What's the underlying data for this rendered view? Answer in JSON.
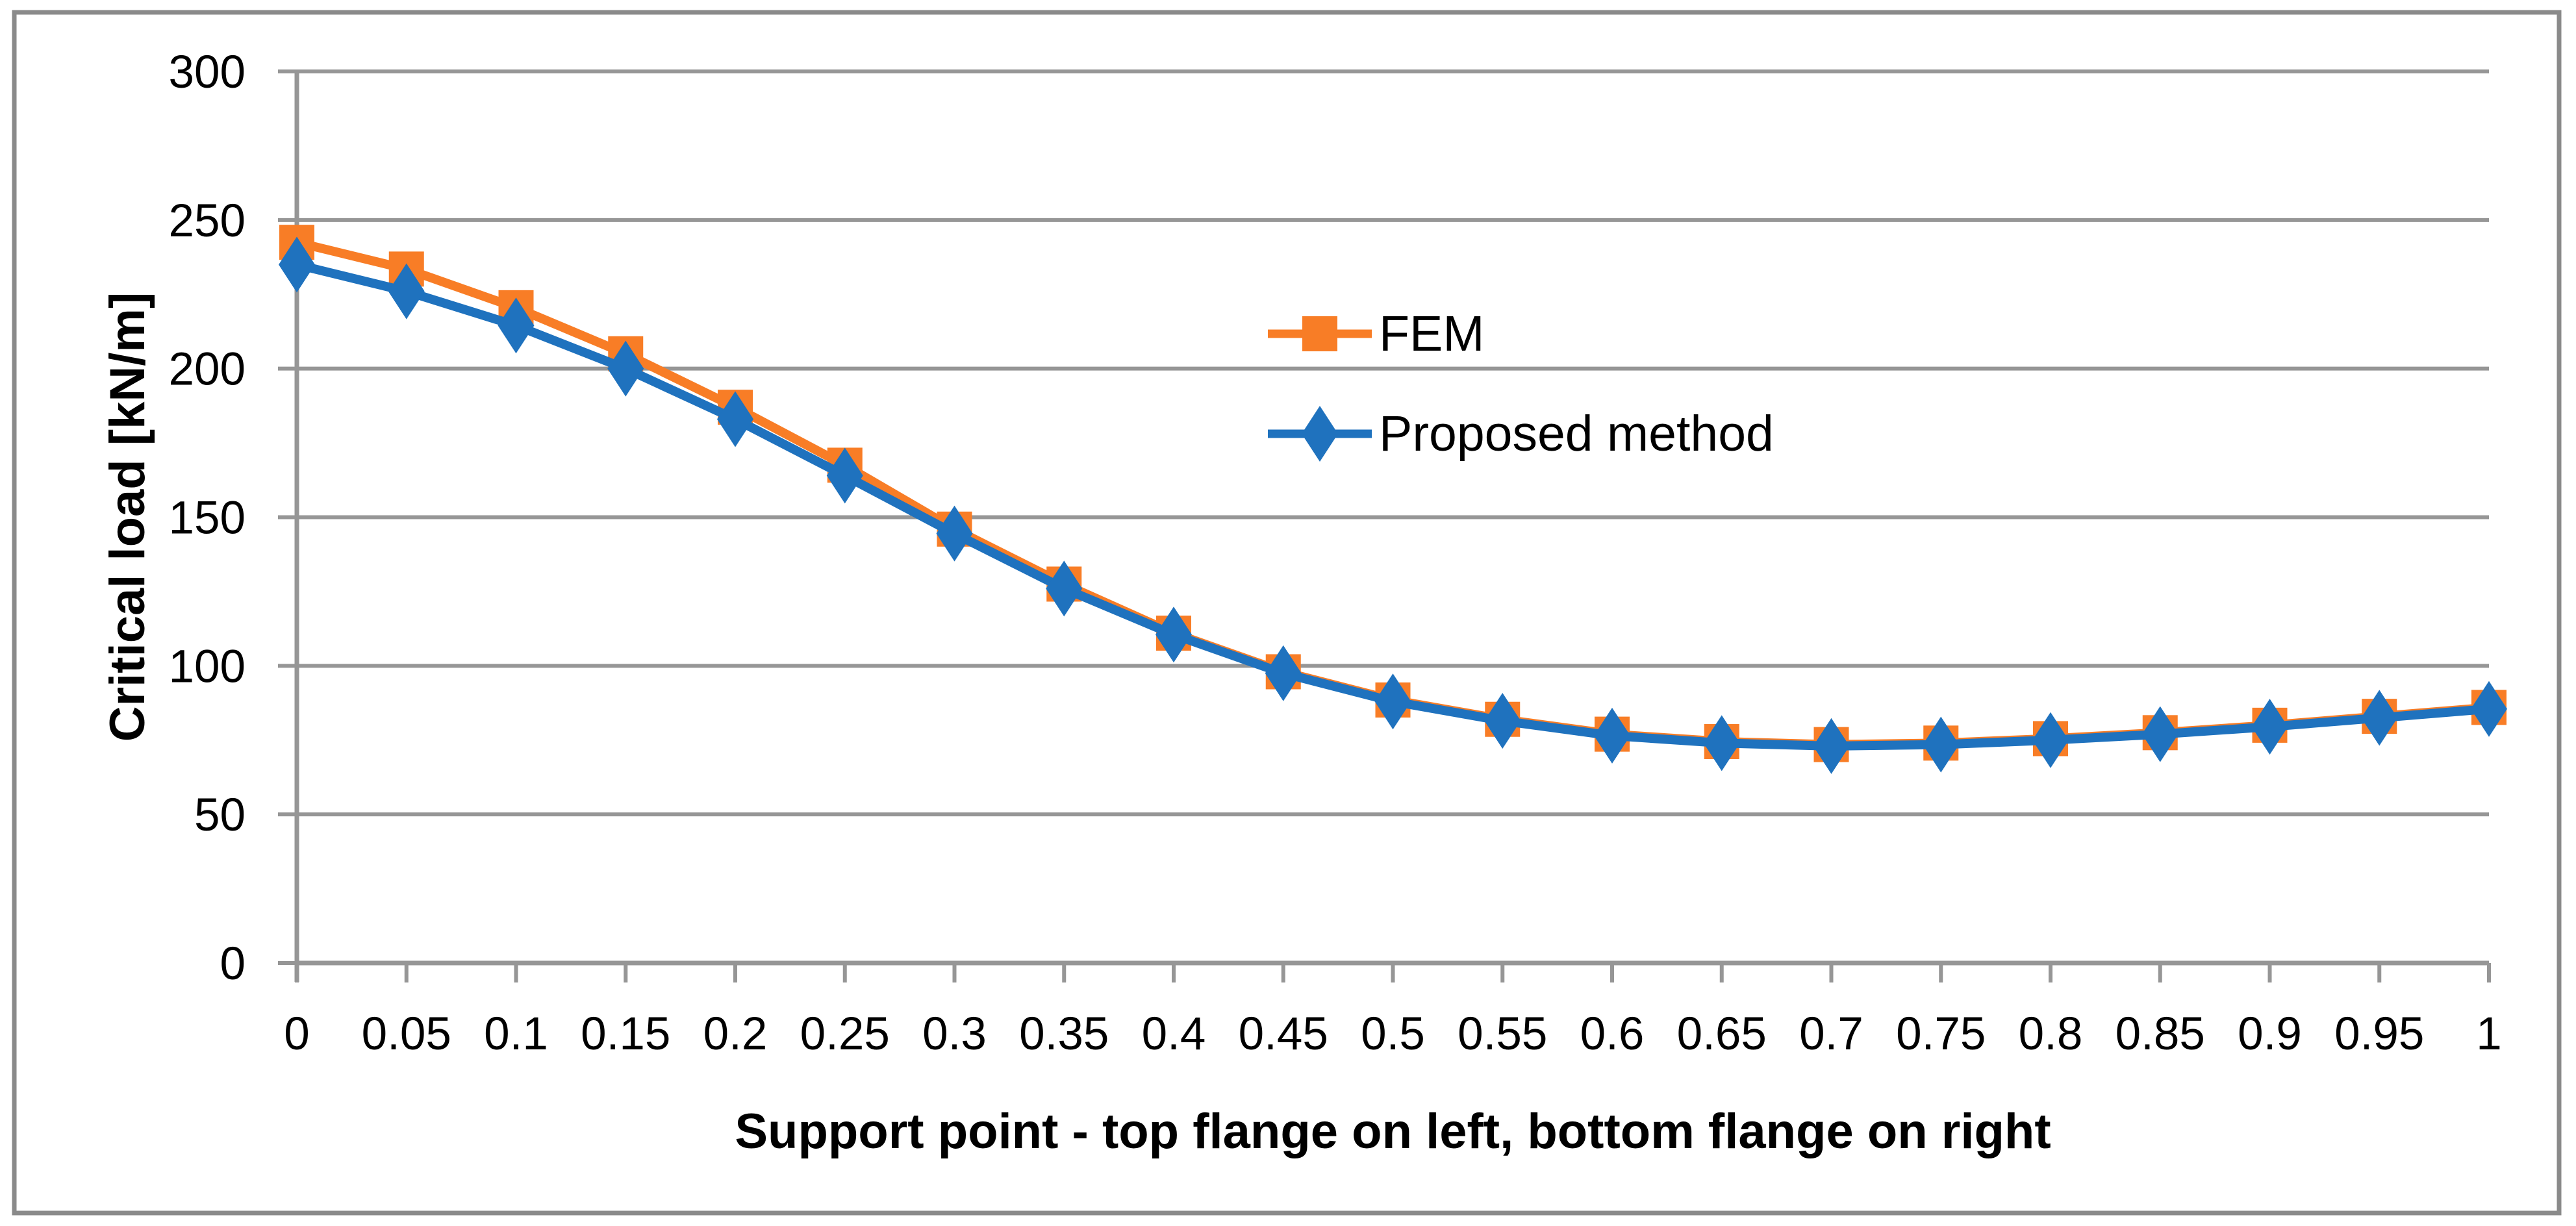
{
  "figure": {
    "background": "#FFFFFF",
    "border_color": "#8A8A8A",
    "description": "Line chart comparing FEM and Proposed method critical loads versus support point position"
  },
  "chart_data": {
    "type": "line",
    "title": "",
    "xlabel": "Support point - top flange on left, bottom flange on right",
    "ylabel": "Critical load [kN/m]",
    "xlim": [
      0,
      1
    ],
    "ylim": [
      0,
      300
    ],
    "grid": "horizontal-major",
    "legend_position": "inside-top-center",
    "x": [
      0,
      0.05,
      0.1,
      0.15,
      0.2,
      0.25,
      0.3,
      0.35,
      0.4,
      0.45,
      0.5,
      0.55,
      0.6,
      0.65,
      0.7,
      0.75,
      0.8,
      0.85,
      0.9,
      0.95,
      1
    ],
    "x_tick_labels": [
      "0",
      "0.05",
      "0.1",
      "0.15",
      "0.2",
      "0.25",
      "0.3",
      "0.35",
      "0.4",
      "0.45",
      "0.5",
      "0.55",
      "0.6",
      "0.65",
      "0.7",
      "0.75",
      "0.8",
      "0.85",
      "0.9",
      "0.95",
      "1"
    ],
    "y_ticks": [
      0,
      50,
      100,
      150,
      200,
      250,
      300
    ],
    "y_tick_labels": [
      "0",
      "50",
      "100",
      "150",
      "200",
      "250",
      "300"
    ],
    "series": [
      {
        "name": "FEM",
        "marker": "square",
        "color": "#F87D26",
        "values": [
          242.5,
          233.5,
          220.5,
          205,
          187,
          167.5,
          146,
          127.5,
          111,
          98,
          88.5,
          82,
          77,
          74.5,
          73.5,
          74,
          75.5,
          77.5,
          80,
          83,
          86
        ]
      },
      {
        "name": "Proposed method",
        "marker": "diamond",
        "color": "#1F72BE",
        "values": [
          235,
          226,
          214.5,
          200,
          183,
          164,
          144.5,
          126,
          110.5,
          97.5,
          88,
          81.5,
          76.5,
          74,
          73,
          73.5,
          75,
          77,
          79.5,
          82.5,
          85.5
        ]
      }
    ],
    "colors": {
      "grid": "#969696",
      "axis": "#969696",
      "text": "#000000"
    }
  }
}
